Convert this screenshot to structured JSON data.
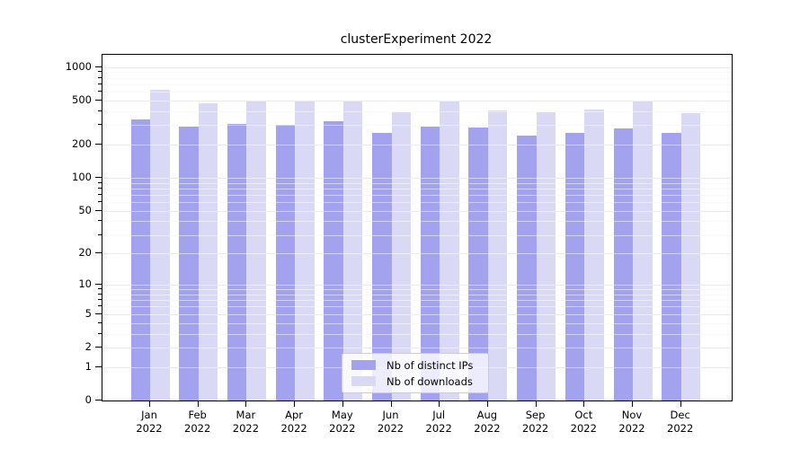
{
  "chart_data": {
    "type": "bar",
    "title": "clusterExperiment 2022",
    "categories": [
      "Jan 2022",
      "Feb 2022",
      "Mar 2022",
      "Apr 2022",
      "May 2022",
      "Jun 2022",
      "Jul 2022",
      "Aug 2022",
      "Sep 2022",
      "Oct 2022",
      "Nov 2022",
      "Dec 2022"
    ],
    "series": [
      {
        "name": "Nb of distinct IPs",
        "color": "#a2a2ef",
        "values": [
          335,
          290,
          310,
          300,
          325,
          255,
          290,
          285,
          240,
          257,
          282,
          254
        ]
      },
      {
        "name": "Nb of downloads",
        "color": "#d9d9f6",
        "values": [
          625,
          470,
          490,
          488,
          490,
          395,
          500,
          410,
          395,
          418,
          505,
          388
        ]
      }
    ],
    "y_scale": "log1p",
    "y_ticks": [
      0,
      1,
      2,
      5,
      10,
      20,
      50,
      100,
      200,
      500,
      1000
    ],
    "y_minor_ticks": [
      3,
      4,
      6,
      7,
      8,
      9,
      30,
      40,
      60,
      70,
      80,
      90,
      300,
      400,
      600,
      700,
      800,
      900
    ],
    "ylim": [
      0,
      1294
    ],
    "grid": true,
    "legend_position": "lower center",
    "colors": {
      "major_grid": "#d4d4d4",
      "minor_grid": "#f2f2f2",
      "spine": "#000000",
      "background": "#ffffff"
    }
  }
}
